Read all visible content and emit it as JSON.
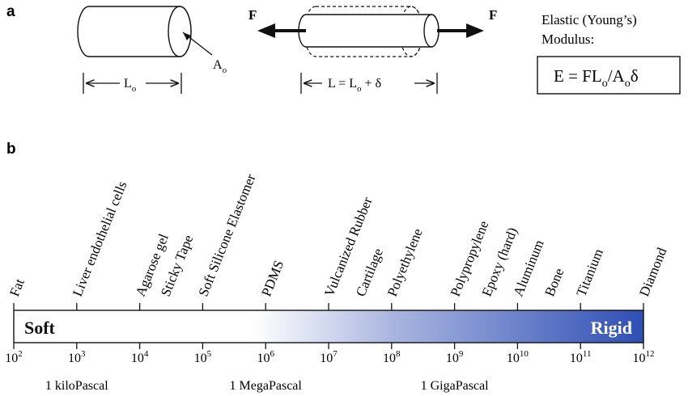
{
  "panel_a": {
    "label": "a",
    "cylinder_area": "A",
    "area_sub": "o",
    "length_base": "L",
    "length_sub": "o",
    "force": "F",
    "stretched_text_1": "L = L",
    "stretched_sub": "o",
    "stretched_text_2": " + δ",
    "modulus_line1": "Elastic (Young’s)",
    "modulus_line2": "Modulus:",
    "formula_p1": "E = FL",
    "formula_s1": "o",
    "formula_p2": "/A",
    "formula_s2": "o",
    "formula_p3": "δ"
  },
  "panel_b": {
    "label": "b",
    "bar_left_label": "Soft",
    "bar_right_label": "Rigid",
    "gradient_start": "#ffffff",
    "gradient_end": "#2e4fb4",
    "scale_min_exp": 2,
    "scale_max_exp": 12,
    "tick_base": "10",
    "ticks": [
      {
        "exp": "2"
      },
      {
        "exp": "3"
      },
      {
        "exp": "4"
      },
      {
        "exp": "5"
      },
      {
        "exp": "6"
      },
      {
        "exp": "7"
      },
      {
        "exp": "8"
      },
      {
        "exp": "9"
      },
      {
        "exp": "10"
      },
      {
        "exp": "11"
      },
      {
        "exp": "12"
      }
    ],
    "unit_labels": [
      {
        "text": "1 kiloPascal",
        "at_exp": 3
      },
      {
        "text": "1 MegaPascal",
        "at_exp": 6
      },
      {
        "text": "1 GigaPascal",
        "at_exp": 9
      }
    ],
    "materials": [
      {
        "name": "Fat",
        "modulus_log10": 2.0
      },
      {
        "name": "Liver endothelial cells",
        "modulus_log10": 3.0
      },
      {
        "name": "Agarose gel",
        "modulus_log10": 4.0
      },
      {
        "name": "Sticky Tape",
        "modulus_log10": 4.4
      },
      {
        "name": "Soft Silicone Elastomer",
        "modulus_log10": 5.0
      },
      {
        "name": "PDMS",
        "modulus_log10": 6.0
      },
      {
        "name": "Vulcanized Rubber",
        "modulus_log10": 7.0
      },
      {
        "name": "Cartilage",
        "modulus_log10": 7.5
      },
      {
        "name": "Polyethylene",
        "modulus_log10": 8.0
      },
      {
        "name": "Polypropylene",
        "modulus_log10": 9.0
      },
      {
        "name": "Epoxy (hard)",
        "modulus_log10": 9.5
      },
      {
        "name": "Aluminum",
        "modulus_log10": 10.0
      },
      {
        "name": "Bone",
        "modulus_log10": 10.5
      },
      {
        "name": "Titanium",
        "modulus_log10": 11.0
      },
      {
        "name": "Diamond",
        "modulus_log10": 12.0
      }
    ]
  }
}
